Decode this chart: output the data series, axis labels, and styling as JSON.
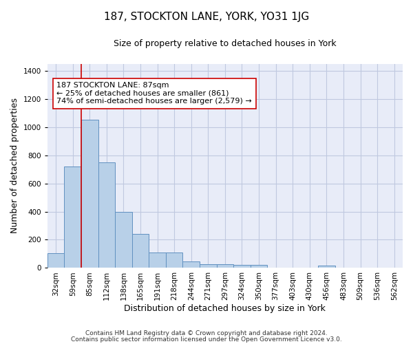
{
  "title": "187, STOCKTON LANE, YORK, YO31 1JG",
  "subtitle": "Size of property relative to detached houses in York",
  "xlabel": "Distribution of detached houses by size in York",
  "ylabel": "Number of detached properties",
  "footnote1": "Contains HM Land Registry data © Crown copyright and database right 2024.",
  "footnote2": "Contains public sector information licensed under the Open Government Licence v3.0.",
  "bar_labels": [
    "32sqm",
    "59sqm",
    "85sqm",
    "112sqm",
    "138sqm",
    "165sqm",
    "191sqm",
    "218sqm",
    "244sqm",
    "271sqm",
    "297sqm",
    "324sqm",
    "350sqm",
    "377sqm",
    "403sqm",
    "430sqm",
    "456sqm",
    "483sqm",
    "509sqm",
    "536sqm",
    "562sqm"
  ],
  "bar_values": [
    105,
    720,
    1050,
    750,
    400,
    243,
    112,
    112,
    47,
    28,
    28,
    20,
    20,
    0,
    0,
    0,
    15,
    0,
    0,
    0,
    0
  ],
  "bar_color": "#b8d0e8",
  "bar_edge_color": "#6090c0",
  "bar_linewidth": 0.7,
  "vline_x": 1.5,
  "vline_color": "#cc0000",
  "vline_linewidth": 1.2,
  "annotation_text": "187 STOCKTON LANE: 87sqm\n← 25% of detached houses are smaller (861)\n74% of semi-detached houses are larger (2,579) →",
  "annotation_box_color": "white",
  "annotation_box_edge_color": "#cc0000",
  "ylim": [
    0,
    1450
  ],
  "yticks": [
    0,
    200,
    400,
    600,
    800,
    1000,
    1200,
    1400
  ],
  "bg_color": "#e8ecf8",
  "grid_color": "#c0c8e0",
  "title_fontsize": 11,
  "subtitle_fontsize": 9,
  "axis_label_fontsize": 9,
  "tick_fontsize": 7.5,
  "footnote_fontsize": 6.5
}
